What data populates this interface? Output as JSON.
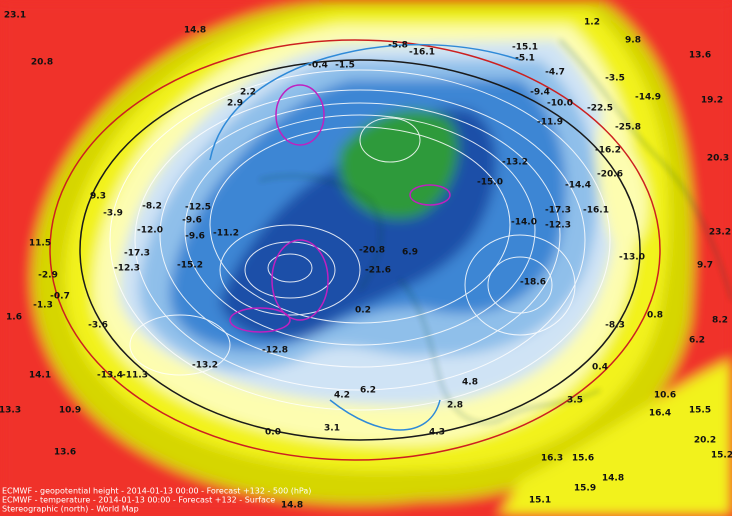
{
  "map": {
    "labels": [
      "23.1",
      "20.8",
      "14.8",
      "2.2",
      "2.9",
      "-0.4",
      "-1.5",
      "-5.8",
      "-16.1",
      "-15.1",
      "1.2",
      "9.8",
      "13.6",
      "-4.7",
      "-3.5",
      "19.2",
      "-14.9",
      "-22.5",
      "-25.8",
      "-16.2",
      "20.3",
      "-20.6",
      "-14.4",
      "9.3",
      "-3.9",
      "-8.2",
      "-12.5",
      "-9.6",
      "-12.0",
      "-9.6",
      "-11.2",
      "11.5",
      "-17.3",
      "-15.2",
      "-12.3",
      "-2.9",
      "-1.3",
      "-0.7",
      "1.6",
      "-3.6",
      "0.2",
      "-13.0",
      "23.2",
      "9.7",
      "0.8",
      "-8.3",
      "8.2",
      "6.2",
      "-11.3",
      "-13.4",
      "14.1",
      "13.3",
      "10.9",
      "4.2",
      "6.2",
      "0.0",
      "3.1",
      "4.3",
      "2.8",
      "4.8",
      "16.4",
      "15.5",
      "20.2",
      "15.6",
      "16.3",
      "15.9",
      "15.1",
      "14.8",
      "14.8",
      "13.6",
      "10.6",
      "15.2",
      "3.5",
      "0.4",
      "-18.6",
      "-15.0",
      "-13.2",
      "-11.9",
      "-10.0",
      "-9.4",
      "-5.1",
      "-14.0",
      "-17.3",
      "-12.3",
      "-16.1",
      "-20.8",
      "6.9",
      "-21.6",
      "-12.8",
      "-13.2"
    ],
    "footer": [
      "ECMWF - geopotential height - 2014-01-13 00:00 - Forecast +132 - 500 (hPa)",
      "ECMWF - temperature - 2014-01-13 00:00 - Forecast +132 - Surface",
      "Stereographic (north) - World Map"
    ]
  }
}
